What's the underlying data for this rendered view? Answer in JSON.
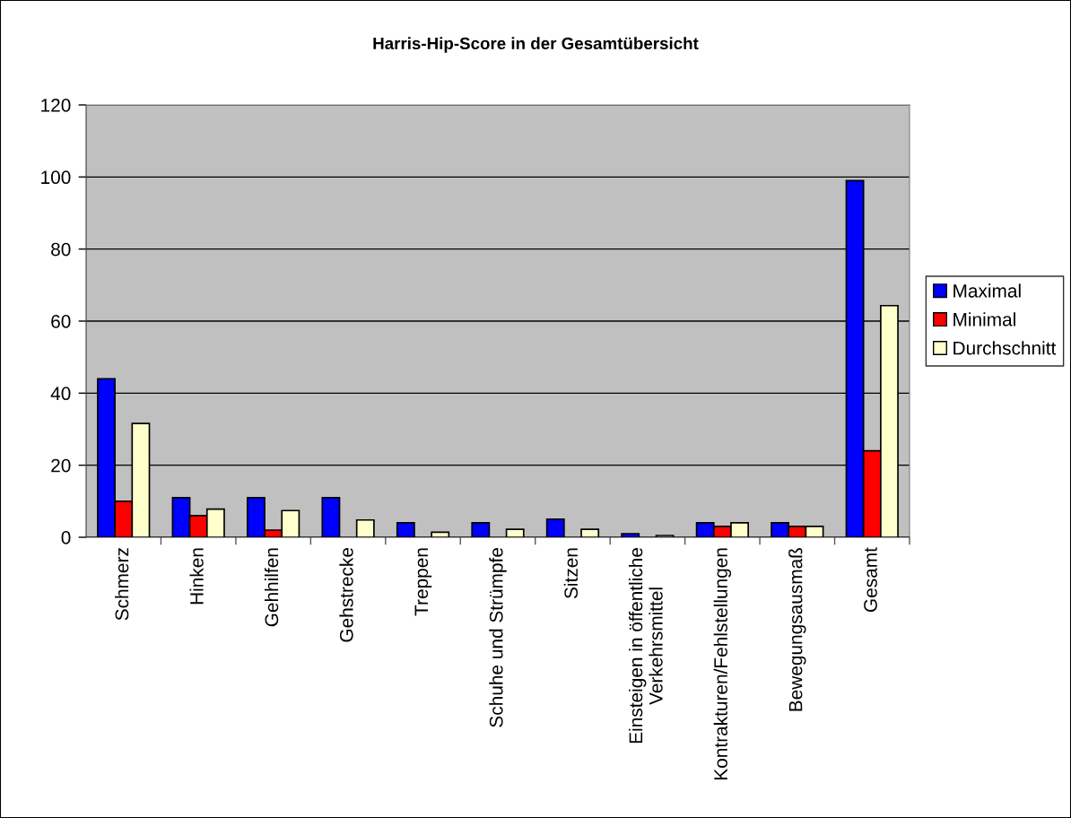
{
  "chart_data": {
    "type": "bar",
    "title": "Harris-Hip-Score in der Gesamtübersicht",
    "categories": [
      "Schmerz",
      "Hinken",
      "Gehhilfen",
      "Gehstrecke",
      "Treppen",
      "Schuhe und Strümpfe",
      "Sitzen",
      "Einsteigen in öffentliche\nVerkehrsmittel",
      "Kontrakturen/Fehlstellungen",
      "Bewegungsausmaß",
      "Gesamt"
    ],
    "series": [
      {
        "name": "Maximal",
        "color": "#0000ff",
        "values": [
          44,
          11,
          11,
          11,
          4,
          4,
          5,
          1,
          4,
          4,
          99
        ]
      },
      {
        "name": "Minimal",
        "color": "#ff0000",
        "values": [
          10,
          6,
          2,
          null,
          null,
          null,
          null,
          null,
          3,
          3,
          24
        ]
      },
      {
        "name": "Durchschnitt",
        "color": "#ffffcc",
        "values": [
          31.6,
          7.8,
          7.4,
          4.8,
          1.4,
          2.2,
          2.2,
          0.5,
          4,
          3,
          64.3
        ]
      }
    ],
    "ylim": [
      0,
      120
    ],
    "yticks": [
      0,
      20,
      40,
      60,
      80,
      100,
      120
    ],
    "grid": "y",
    "legend": "right"
  }
}
